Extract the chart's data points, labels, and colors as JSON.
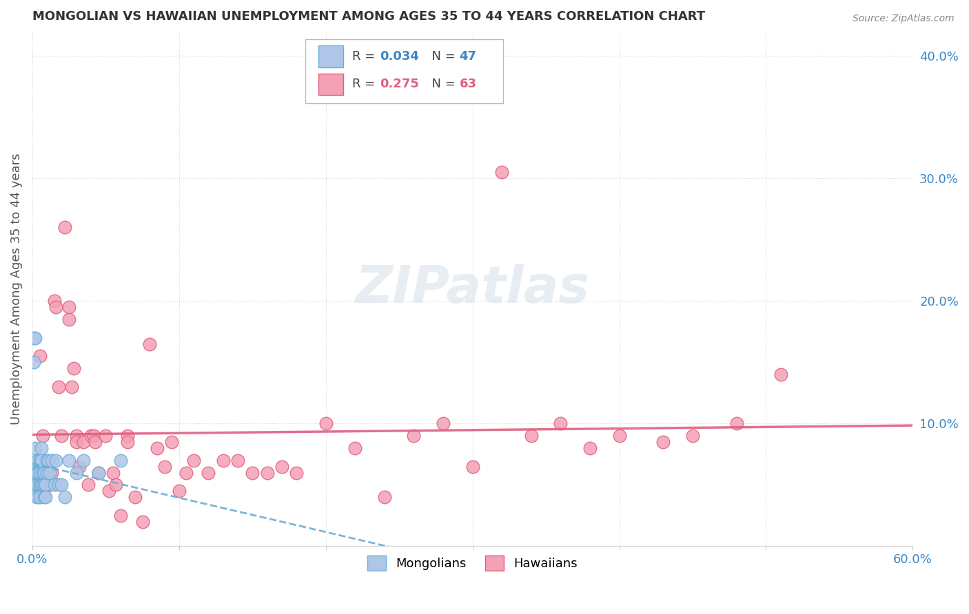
{
  "title": "MONGOLIAN VS HAWAIIAN UNEMPLOYMENT AMONG AGES 35 TO 44 YEARS CORRELATION CHART",
  "source": "Source: ZipAtlas.com",
  "ylabel": "Unemployment Among Ages 35 to 44 years",
  "xlim": [
    0.0,
    0.6
  ],
  "ylim": [
    0.0,
    0.42
  ],
  "xticks": [
    0.0,
    0.1,
    0.2,
    0.3,
    0.4,
    0.5,
    0.6
  ],
  "yticks": [
    0.0,
    0.1,
    0.2,
    0.3,
    0.4
  ],
  "background_color": "#ffffff",
  "grid_color": "#cccccc",
  "mongolian_color": "#aec6e8",
  "hawaiian_color": "#f4a0b5",
  "mongolian_edge": "#6baed6",
  "hawaiian_edge": "#e06080",
  "legend_R_mongolian": "0.034",
  "legend_N_mongolian": "47",
  "legend_R_hawaiian": "0.275",
  "legend_N_hawaiian": "63",
  "mongolian_x": [
    0.001,
    0.001,
    0.001,
    0.002,
    0.002,
    0.002,
    0.003,
    0.003,
    0.003,
    0.003,
    0.003,
    0.004,
    0.004,
    0.004,
    0.004,
    0.004,
    0.005,
    0.005,
    0.005,
    0.005,
    0.005,
    0.005,
    0.006,
    0.006,
    0.006,
    0.007,
    0.007,
    0.008,
    0.008,
    0.008,
    0.009,
    0.009,
    0.01,
    0.01,
    0.011,
    0.012,
    0.013,
    0.015,
    0.016,
    0.018,
    0.02,
    0.022,
    0.025,
    0.03,
    0.035,
    0.045,
    0.06
  ],
  "mongolian_y": [
    0.17,
    0.15,
    0.06,
    0.17,
    0.08,
    0.05,
    0.07,
    0.06,
    0.05,
    0.05,
    0.04,
    0.07,
    0.06,
    0.06,
    0.05,
    0.04,
    0.07,
    0.06,
    0.06,
    0.05,
    0.05,
    0.04,
    0.08,
    0.07,
    0.05,
    0.06,
    0.05,
    0.06,
    0.05,
    0.04,
    0.05,
    0.04,
    0.07,
    0.06,
    0.07,
    0.06,
    0.07,
    0.05,
    0.07,
    0.05,
    0.05,
    0.04,
    0.07,
    0.06,
    0.07,
    0.06,
    0.07
  ],
  "hawaiian_x": [
    0.005,
    0.007,
    0.008,
    0.01,
    0.01,
    0.012,
    0.013,
    0.015,
    0.016,
    0.018,
    0.02,
    0.022,
    0.025,
    0.025,
    0.027,
    0.028,
    0.03,
    0.03,
    0.032,
    0.035,
    0.038,
    0.04,
    0.042,
    0.043,
    0.045,
    0.05,
    0.052,
    0.055,
    0.057,
    0.06,
    0.065,
    0.065,
    0.07,
    0.075,
    0.08,
    0.085,
    0.09,
    0.095,
    0.1,
    0.105,
    0.11,
    0.12,
    0.13,
    0.14,
    0.15,
    0.16,
    0.17,
    0.18,
    0.2,
    0.22,
    0.24,
    0.26,
    0.28,
    0.3,
    0.32,
    0.34,
    0.36,
    0.38,
    0.4,
    0.43,
    0.45,
    0.48,
    0.51
  ],
  "hawaiian_y": [
    0.155,
    0.09,
    0.06,
    0.06,
    0.05,
    0.05,
    0.06,
    0.2,
    0.195,
    0.13,
    0.09,
    0.26,
    0.195,
    0.185,
    0.13,
    0.145,
    0.09,
    0.085,
    0.065,
    0.085,
    0.05,
    0.09,
    0.09,
    0.085,
    0.06,
    0.09,
    0.045,
    0.06,
    0.05,
    0.025,
    0.09,
    0.085,
    0.04,
    0.02,
    0.165,
    0.08,
    0.065,
    0.085,
    0.045,
    0.06,
    0.07,
    0.06,
    0.07,
    0.07,
    0.06,
    0.06,
    0.065,
    0.06,
    0.1,
    0.08,
    0.04,
    0.09,
    0.1,
    0.065,
    0.305,
    0.09,
    0.1,
    0.08,
    0.09,
    0.085,
    0.09,
    0.1,
    0.14
  ]
}
